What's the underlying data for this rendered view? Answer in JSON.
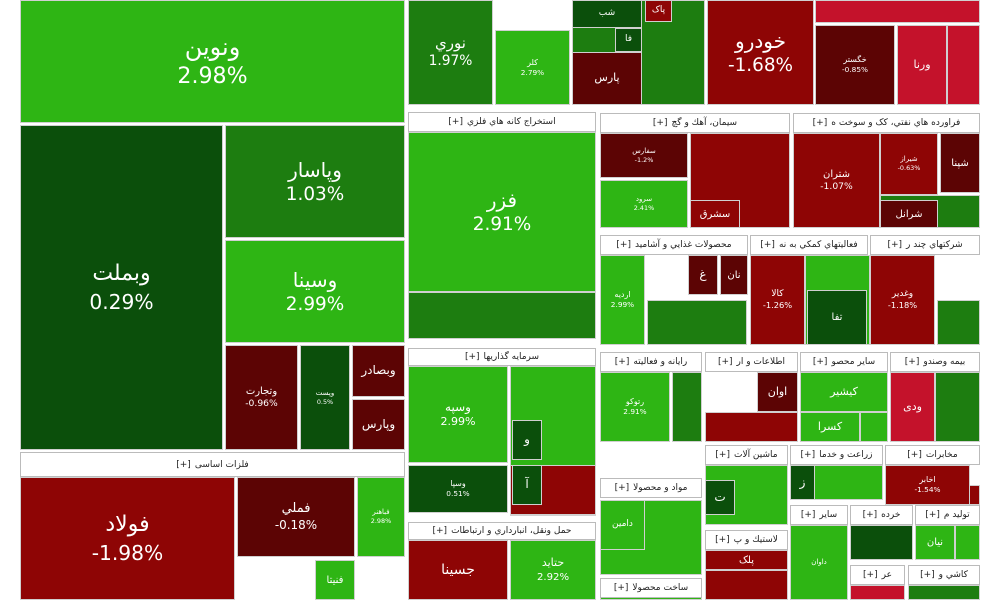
{
  "expand": "[+]",
  "sectors": [
    {
      "tiles": [
        {
          "name": "ونوین",
          "change": "2.98%"
        },
        {
          "name": "وبملت",
          "change": "0.29%"
        },
        {
          "name": "وپاسار",
          "change": "1.03%"
        },
        {
          "name": "وسینا",
          "change": "2.99%"
        },
        {
          "name": "وتجارت",
          "change": "-0.96%"
        },
        {
          "name": "وپست",
          "change": "0.5%"
        },
        {
          "name": "وبصادر"
        },
        {
          "name": "وپارس"
        }
      ]
    },
    {
      "title": "فلزات اساسی",
      "tiles": [
        {
          "name": "فولاد",
          "change": "-1.98%"
        },
        {
          "name": "فملي",
          "change": "-0.18%"
        },
        {
          "name": "فباهنر",
          "change": "2.98%"
        },
        {
          "name": "فنیتا"
        }
      ]
    },
    {
      "tiles": [
        {
          "name": "نوري",
          "change": "1.97%"
        },
        {
          "name": "کلر",
          "change": "2.79%"
        },
        {
          "name": "شب"
        },
        {
          "name": "پاک"
        },
        {
          "name": "فا"
        },
        {
          "name": "پارس"
        }
      ]
    },
    {
      "tiles": [
        {
          "name": "خودرو",
          "change": "-1.68%"
        },
        {
          "name": "خگستر",
          "change": "-0.85%"
        },
        {
          "name": "ورنا"
        }
      ]
    },
    {
      "title": "استخراج کانه هاي فلزي",
      "tiles": [
        {
          "name": "فزر",
          "change": "2.91%"
        }
      ]
    },
    {
      "title": "سرمايه گذاريها",
      "tiles": [
        {
          "name": "وسپه",
          "change": "2.99%"
        },
        {
          "name": "وسپا",
          "change": "0.51%"
        },
        {
          "name": "و"
        },
        {
          "name": "آ"
        }
      ]
    },
    {
      "title": "حمل ونقل، انبارداري و ارتباطات",
      "tiles": [
        {
          "name": "جسینا"
        },
        {
          "name": "حتاید",
          "change": "2.92%"
        }
      ]
    },
    {
      "title": "سيمان، آهك و گچ",
      "tiles": [
        {
          "name": "سفارس",
          "change": "-1.2%"
        },
        {
          "name": "سرود",
          "change": "2.41%"
        },
        {
          "name": "سشرق"
        }
      ]
    },
    {
      "title": "فراورده هاي نفتي، كک و سوخت ه",
      "tiles": [
        {
          "name": "شتران",
          "change": "-1.07%"
        },
        {
          "name": "شپنا"
        },
        {
          "name": "شرانل"
        },
        {
          "name": "شیراز",
          "change": "-0.63%"
        }
      ]
    },
    {
      "title": "محصولات غذايي و آشاميد",
      "tiles": [
        {
          "name": "اردیه",
          "change": "2.99%"
        },
        {
          "name": "غ"
        },
        {
          "name": "نان"
        }
      ]
    },
    {
      "title": "فعاليتهاي كمكي به نه",
      "tiles": [
        {
          "name": "کالا",
          "change": "-1.26%"
        },
        {
          "name": "تفا"
        }
      ]
    },
    {
      "title": "شركتهاي چند ر",
      "tiles": [
        {
          "name": "وغدیر",
          "change": "-1.18%"
        }
      ]
    },
    {
      "title": "رايانه و فعاليته",
      "tiles": [
        {
          "name": "رتوکو",
          "change": "2.91%"
        }
      ]
    },
    {
      "title": "اطلاعات و ار",
      "tiles": [
        {
          "name": "اوان"
        }
      ]
    },
    {
      "title": "ساير محصو",
      "tiles": [
        {
          "name": "کیشیر"
        },
        {
          "name": "کسرا"
        }
      ]
    },
    {
      "title": "بيمه وصندو",
      "tiles": [
        {
          "name": "ودی"
        }
      ]
    },
    {
      "title": "ماشين آلات",
      "tiles": [
        {
          "name": "ت"
        }
      ]
    },
    {
      "title": "زراعت و خدما",
      "tiles": [
        {
          "name": "ز"
        }
      ]
    },
    {
      "title": "مخابرات",
      "tiles": [
        {
          "name": "اخابر",
          "change": "-1.54%"
        }
      ]
    },
    {
      "title": "مواد و محصولا",
      "tiles": [
        {
          "name": "دامین"
        }
      ]
    },
    {
      "title": "ساير",
      "tiles": [
        {
          "name": "داوان"
        }
      ]
    },
    {
      "title": "خرده",
      "tiles": []
    },
    {
      "title": "توليد م",
      "tiles": [
        {
          "name": "نیان"
        }
      ]
    },
    {
      "title": "لاستيك و پ",
      "tiles": [
        {
          "name": "پلک"
        }
      ]
    },
    {
      "title": "ساخت محصولا",
      "tiles": []
    },
    {
      "title": "عر",
      "tiles": []
    },
    {
      "title": "كاشي و",
      "tiles": []
    }
  ]
}
